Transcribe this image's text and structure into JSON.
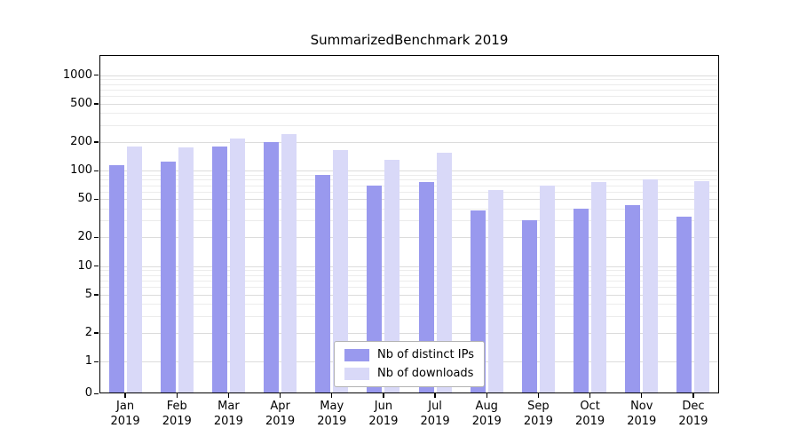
{
  "title": "SummarizedBenchmark 2019",
  "chart_data": {
    "type": "bar",
    "title": "SummarizedBenchmark 2019",
    "yscale": "symlog",
    "ylim": [
      0,
      1600
    ],
    "yticks": [
      0,
      1,
      2,
      5,
      10,
      20,
      50,
      100,
      200,
      500,
      1000
    ],
    "grid": true,
    "legend_position": "lower center",
    "categories": [
      "Jan",
      "Feb",
      "Mar",
      "Apr",
      "May",
      "Jun",
      "Jul",
      "Aug",
      "Sep",
      "Oct",
      "Nov",
      "Dec"
    ],
    "year": "2019",
    "series": [
      {
        "name": "Nb of distinct IPs",
        "color": "#9999ee",
        "values": [
          115,
          125,
          180,
          200,
          90,
          70,
          75,
          38,
          30,
          40,
          43,
          33
        ]
      },
      {
        "name": "Nb of downloads",
        "color": "#d9d9f8",
        "values": [
          180,
          175,
          215,
          240,
          165,
          130,
          155,
          63,
          70,
          75,
          80,
          78
        ]
      }
    ]
  }
}
